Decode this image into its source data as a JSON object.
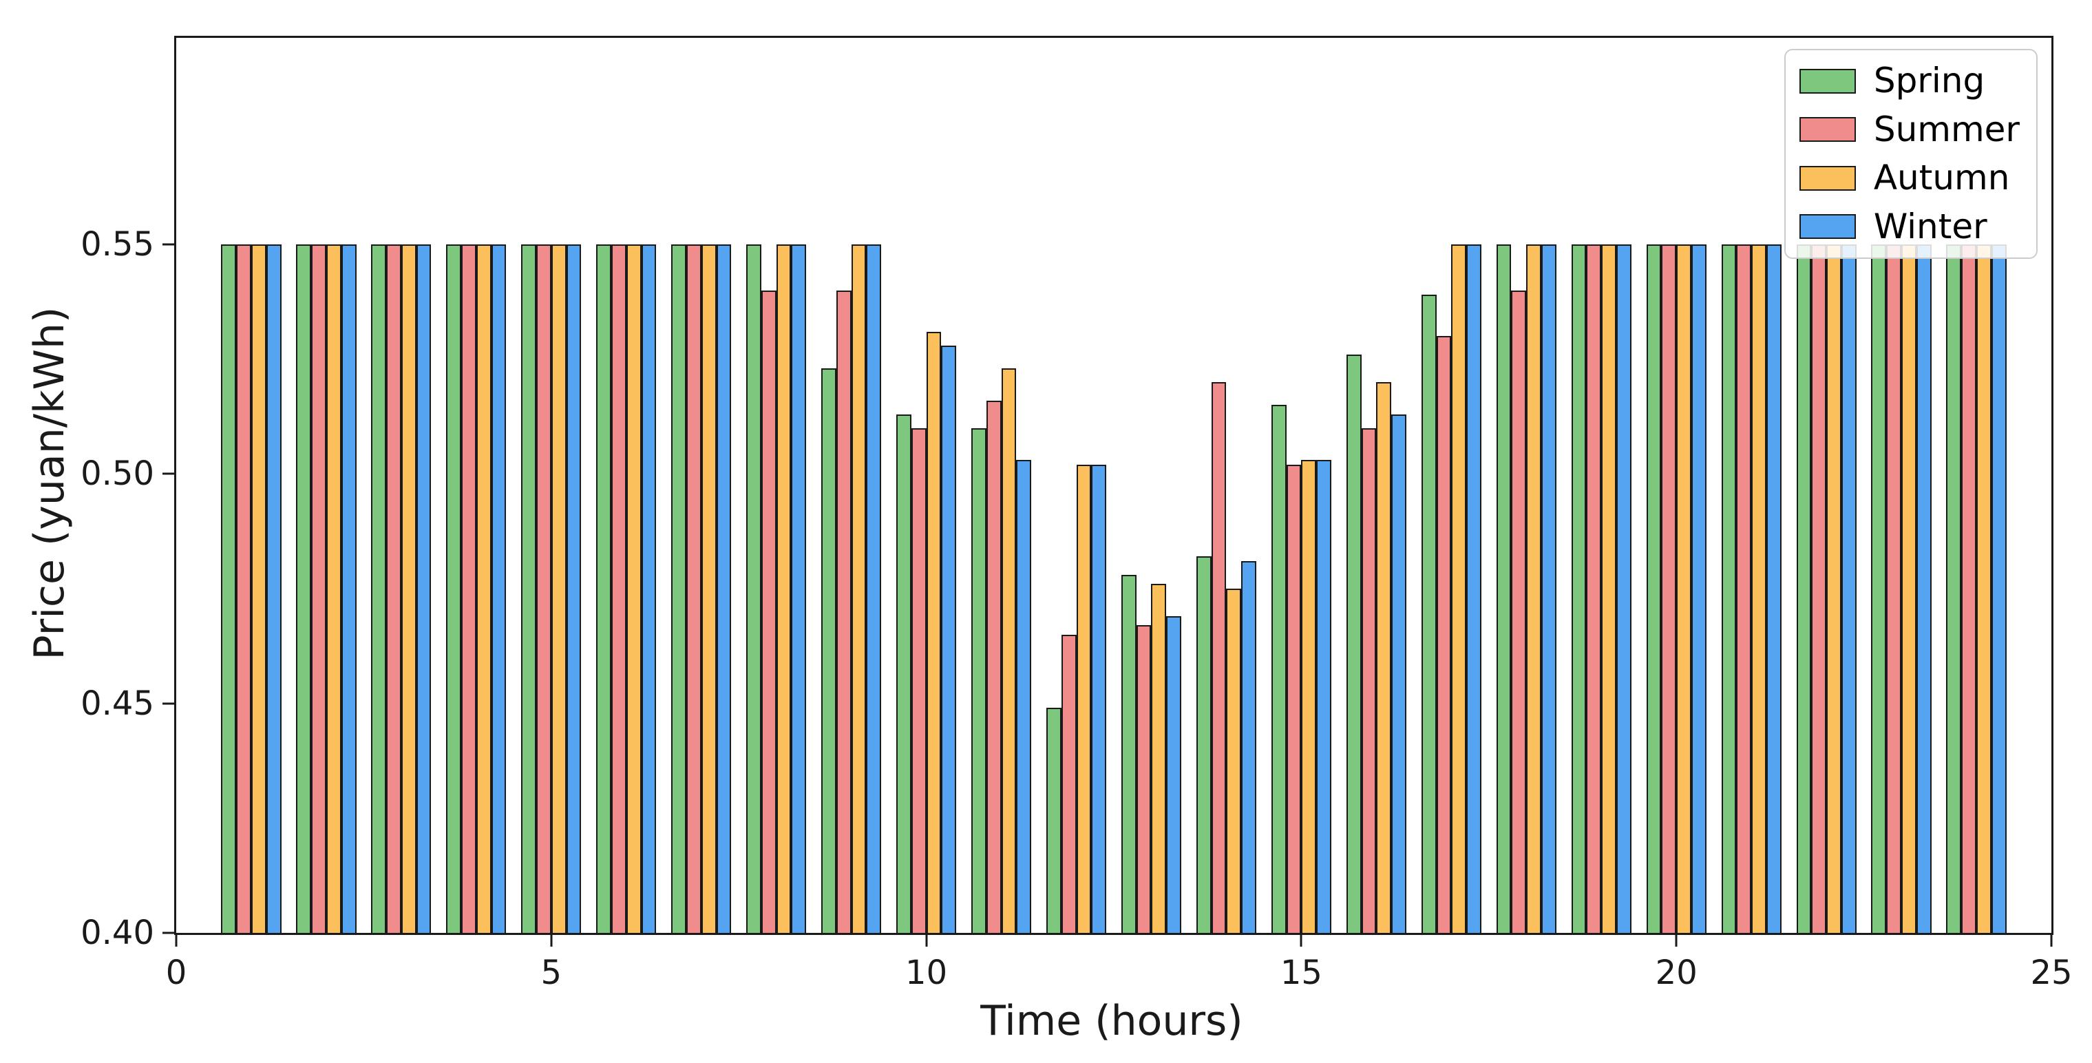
{
  "figure": {
    "background": "#ffffff",
    "plot_border_color": "#1a1a1a"
  },
  "chart_data": {
    "type": "bar",
    "title": "",
    "xlabel": "Time (hours)",
    "ylabel": "Price (yuan/kWh)",
    "xlim": [
      0,
      25
    ],
    "ylim": [
      0.4,
      0.595
    ],
    "grid": false,
    "legend_position": "upper right",
    "bar_group_width": 0.8,
    "bar_edge_color": "#1a1a1a",
    "x": [
      1,
      2,
      3,
      4,
      5,
      6,
      7,
      8,
      9,
      10,
      11,
      12,
      13,
      14,
      15,
      16,
      17,
      18,
      19,
      20,
      21,
      22,
      23,
      24
    ],
    "xticks": [
      {
        "label": "0",
        "value": 0
      },
      {
        "label": "5",
        "value": 5
      },
      {
        "label": "10",
        "value": 10
      },
      {
        "label": "15",
        "value": 15
      },
      {
        "label": "20",
        "value": 20
      },
      {
        "label": "25",
        "value": 25
      }
    ],
    "yticks": [
      {
        "label": "0.40",
        "value": 0.4
      },
      {
        "label": "0.45",
        "value": 0.45
      },
      {
        "label": "0.50",
        "value": 0.5
      },
      {
        "label": "0.55",
        "value": 0.55
      }
    ],
    "series": [
      {
        "name": "Spring",
        "color": "#7dc87e",
        "values": [
          0.55,
          0.55,
          0.55,
          0.55,
          0.55,
          0.55,
          0.55,
          0.55,
          0.523,
          0.513,
          0.51,
          0.449,
          0.478,
          0.482,
          0.515,
          0.526,
          0.539,
          0.55,
          0.55,
          0.55,
          0.55,
          0.55,
          0.55,
          0.55
        ]
      },
      {
        "name": "Summer",
        "color": "#f08c8c",
        "values": [
          0.55,
          0.55,
          0.55,
          0.55,
          0.55,
          0.55,
          0.55,
          0.54,
          0.54,
          0.51,
          0.516,
          0.465,
          0.467,
          0.52,
          0.502,
          0.51,
          0.53,
          0.54,
          0.55,
          0.55,
          0.55,
          0.55,
          0.55,
          0.55
        ]
      },
      {
        "name": "Autumn",
        "color": "#fbc05c",
        "values": [
          0.55,
          0.55,
          0.55,
          0.55,
          0.55,
          0.55,
          0.55,
          0.55,
          0.55,
          0.531,
          0.523,
          0.502,
          0.476,
          0.475,
          0.503,
          0.52,
          0.55,
          0.55,
          0.55,
          0.55,
          0.55,
          0.55,
          0.55,
          0.55
        ]
      },
      {
        "name": "Winter",
        "color": "#54a4f1",
        "values": [
          0.55,
          0.55,
          0.55,
          0.55,
          0.55,
          0.55,
          0.55,
          0.55,
          0.55,
          0.528,
          0.503,
          0.502,
          0.469,
          0.481,
          0.503,
          0.513,
          0.55,
          0.55,
          0.55,
          0.55,
          0.55,
          0.55,
          0.55,
          0.55
        ]
      }
    ]
  }
}
